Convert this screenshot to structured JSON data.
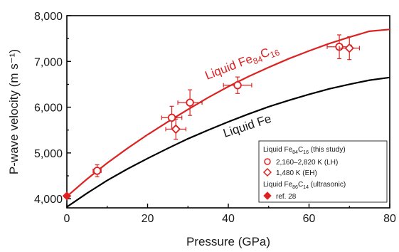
{
  "chart_data": {
    "type": "scatter",
    "xlabel": "Pressure (GPa)",
    "ylabel": "P-wave velocity (m s⁻¹)",
    "xlim": [
      0,
      80
    ],
    "ylim": [
      3800,
      8000
    ],
    "xticks": [
      0,
      20,
      40,
      60,
      80
    ],
    "yticks": [
      4000,
      5000,
      6000,
      7000,
      8000
    ],
    "xtick_labels": [
      "0",
      "20",
      "40",
      "60",
      "80"
    ],
    "ytick_labels": [
      "4,000",
      "5,000",
      "6,000",
      "7,000",
      "8,000"
    ],
    "grid": false,
    "legend_position": "bottom-right",
    "colors": {
      "fe_c": "#dd2222",
      "fe": "#000000"
    },
    "curves": [
      {
        "label": "Liquid Fe",
        "label_parts": {
          "main": "Liquid Fe"
        },
        "color": "#000000",
        "x": [
          0,
          5,
          10,
          15,
          20,
          25,
          30,
          35,
          40,
          45,
          50,
          55,
          60,
          65,
          70,
          75,
          80
        ],
        "y": [
          3820,
          4120,
          4400,
          4650,
          4880,
          5100,
          5310,
          5500,
          5680,
          5850,
          6010,
          6150,
          6280,
          6400,
          6500,
          6590,
          6650
        ]
      },
      {
        "label": "Liquid Fe84C16",
        "label_parts": {
          "main": "Liquid Fe",
          "sub1": "84",
          "mid": "C",
          "sub2": "16"
        },
        "color": "#dd2222",
        "x": [
          0,
          5,
          10,
          15,
          20,
          25,
          30,
          35,
          40,
          45,
          50,
          55,
          60,
          65,
          70,
          75,
          80
        ],
        "y": [
          4050,
          4430,
          4780,
          5100,
          5400,
          5680,
          5950,
          6210,
          6450,
          6670,
          6870,
          7060,
          7230,
          7390,
          7530,
          7660,
          7700
        ]
      }
    ],
    "series": [
      {
        "name": "2,160–2,820 K (LH)",
        "marker": "circle-open",
        "color": "#dd2222",
        "points": [
          {
            "x": 7.5,
            "y": 4610,
            "xerr": 1.0,
            "yerr": 130
          },
          {
            "x": 26.0,
            "y": 5770,
            "xerr": 2.5,
            "yerr": 250
          },
          {
            "x": 30.5,
            "y": 6100,
            "xerr": 3.0,
            "yerr": 280
          },
          {
            "x": 42.3,
            "y": 6480,
            "xerr": 3.5,
            "yerr": 180
          },
          {
            "x": 67.5,
            "y": 7320,
            "xerr": 3.0,
            "yerr": 260
          }
        ]
      },
      {
        "name": "1,480 K (EH)",
        "marker": "diamond-open",
        "color": "#dd2222",
        "points": [
          {
            "x": 27.0,
            "y": 5520,
            "xerr": 2.5,
            "yerr": 220
          },
          {
            "x": 70.0,
            "y": 7290,
            "xerr": 2.5,
            "yerr": 250
          }
        ]
      },
      {
        "name": "ref. 28",
        "marker": "diamond-filled",
        "color": "#dd2222",
        "points": [
          {
            "x": 0,
            "y": 4060,
            "xerr": 0,
            "yerr": 0
          }
        ]
      }
    ],
    "legend": {
      "header1": {
        "main": "Liquid Fe",
        "sub1": "84",
        "mid": "C",
        "sub2": "16",
        "suffix": " (this study)"
      },
      "entry1": "2,160–2,820 K (LH)",
      "entry2": "1,480 K (EH)",
      "header2": {
        "main": "Liquid Fe",
        "sub1": "86",
        "mid": "C",
        "sub2": "14",
        "suffix": " (ultrasonic)"
      },
      "entry3": "ref. 28"
    }
  }
}
